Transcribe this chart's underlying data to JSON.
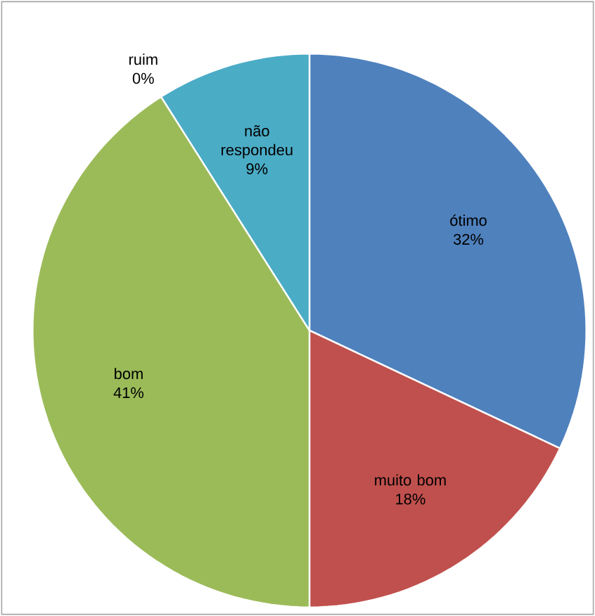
{
  "chart_data": {
    "type": "pie",
    "categories": [
      "ótimo",
      "muito bom",
      "bom",
      "ruim",
      "não respondeu"
    ],
    "values": [
      32,
      18,
      41,
      0,
      9
    ],
    "value_labels": [
      "32%",
      "18%",
      "41%",
      "0%",
      "9%"
    ],
    "colors": [
      "#4f81bd",
      "#c0504d",
      "#9bbb59",
      "#8064a2",
      "#4bacc6"
    ]
  }
}
